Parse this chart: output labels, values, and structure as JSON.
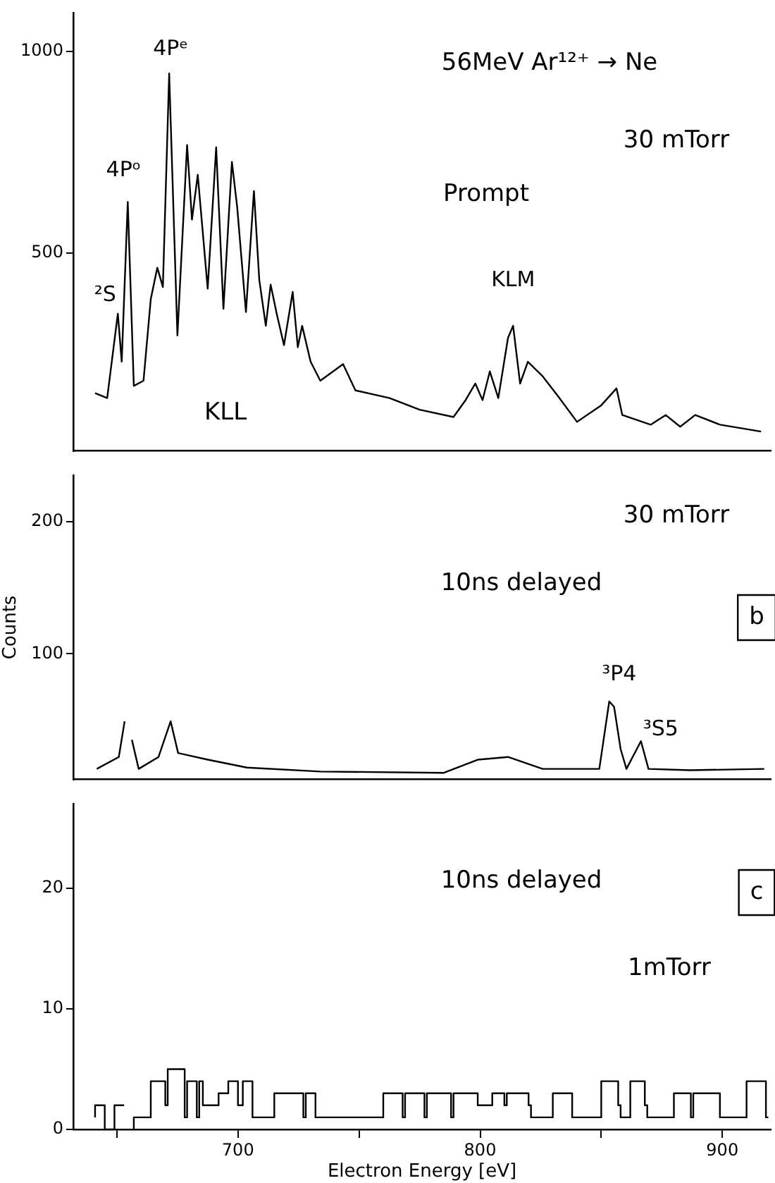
{
  "chart_data": [
    {
      "type": "line",
      "color": "#000000",
      "xlim": [
        632,
        920
      ],
      "ylim": [
        10,
        1095
      ],
      "yticks": [
        500,
        1000
      ],
      "tick_labels": "y",
      "x": [
        641,
        646,
        650.4,
        652,
        654.5,
        657,
        661,
        664,
        666.7,
        669,
        671.6,
        675,
        679,
        681,
        683.4,
        687.5,
        691,
        694,
        697.5,
        699.7,
        703.3,
        706.6,
        708.8,
        711.5,
        713.5,
        716,
        719,
        722.6,
        724.7,
        726.5,
        730,
        734,
        743.4,
        748.5,
        762.6,
        775,
        789,
        794,
        798,
        801,
        804,
        807.5,
        811.5,
        813.6,
        816.5,
        819.7,
        825.8,
        832,
        840,
        850,
        856.3,
        858.7,
        870.4,
        876.6,
        882.6,
        888.8,
        899,
        916
      ],
      "values": [
        153,
        141,
        350,
        231,
        627,
        171,
        184,
        386,
        464,
        416,
        945,
        296,
        768,
        583,
        694,
        412,
        762,
        362,
        726,
        613,
        354,
        654,
        434,
        320,
        422,
        350,
        272,
        404,
        267,
        320,
        231,
        184,
        225,
        160,
        141,
        112,
        94,
        136,
        177,
        136,
        207,
        141,
        290,
        320,
        177,
        231,
        195,
        147,
        82,
        123,
        165,
        99,
        75,
        99,
        70,
        99,
        75,
        58
      ],
      "annotations": [
        "56MeV Ar¹²⁺ → Ne",
        "30 mTorr",
        "Prompt",
        "KLL",
        {
          "text": "²S",
          "x": 650.4,
          "y": 350
        },
        {
          "text": "4Pᵒ",
          "x": 654.5,
          "y": 627
        },
        {
          "text": "4Pᵉ",
          "x": 671.6,
          "y": 945
        },
        {
          "text": "KLM",
          "x": 813.6,
          "y": 320
        }
      ]
    },
    {
      "type": "line",
      "color": "#000000",
      "xlim": [
        632,
        920
      ],
      "ylim": [
        5,
        235
      ],
      "yticks": [
        100,
        200
      ],
      "tick_labels": "y",
      "ylabel": "Counts",
      "x": [
        641.7,
        650.8,
        653.2,
        654.5,
        656.2,
        659,
        667.2,
        672.2,
        675.3,
        687.5,
        703.7,
        734,
        785,
        799.2,
        811.5,
        825.8,
        849.2,
        853.3,
        855.3,
        858,
        860.4,
        866.4,
        869.5,
        886.8,
        917.3
      ],
      "values": [
        13,
        22,
        49,
        null,
        35,
        13,
        22,
        49,
        25,
        20,
        14,
        11,
        10,
        20,
        22,
        13,
        13,
        64,
        60,
        28,
        13,
        34,
        13,
        12,
        13
      ],
      "annotations": [
        "30 mTorr",
        "10ns delayed",
        "b",
        {
          "text": "³P4",
          "x": 853.3,
          "y": 64
        },
        {
          "text": "³S5",
          "x": 866.4,
          "y": 34
        }
      ]
    },
    {
      "type": "step",
      "color": "#000000",
      "xlim": [
        632,
        920
      ],
      "ylim": [
        0,
        27
      ],
      "yticks": [
        0,
        10,
        20
      ],
      "xticks": [
        {
          "value": 650,
          "label": null
        },
        700,
        {
          "value": 750,
          "label": null
        },
        800,
        {
          "value": 850,
          "label": null
        },
        900
      ],
      "xlabel": "Electron Energy [eV]",
      "x": [
        641,
        645,
        649,
        650,
        653,
        654,
        655.5,
        657,
        658,
        664,
        670,
        671,
        678,
        679,
        683,
        684,
        685.5,
        686.5,
        692,
        696,
        700,
        701,
        702,
        706,
        707,
        715,
        727,
        728,
        732,
        733,
        745,
        760,
        768,
        769,
        777,
        778,
        788,
        789,
        799,
        800,
        805,
        810,
        811,
        820,
        821,
        830,
        838,
        839,
        850,
        857,
        858,
        862,
        868,
        869,
        880,
        887,
        888,
        899,
        900,
        910,
        918,
        919
      ],
      "values": [
        1,
        2,
        0,
        2,
        2,
        null,
        null,
        0,
        1,
        1,
        4,
        2,
        5,
        1,
        4,
        1,
        4,
        2,
        2,
        3,
        4,
        2,
        2,
        4,
        1,
        1,
        3,
        1,
        3,
        1,
        1,
        1,
        3,
        1,
        3,
        1,
        3,
        1,
        3,
        2,
        2,
        3,
        2,
        3,
        2,
        1,
        3,
        1,
        1,
        4,
        2,
        1,
        4,
        2,
        1,
        3,
        1,
        3,
        1,
        1,
        4,
        1
      ],
      "annotations": [
        "10ns delayed",
        "c",
        "1mTorr"
      ]
    }
  ]
}
